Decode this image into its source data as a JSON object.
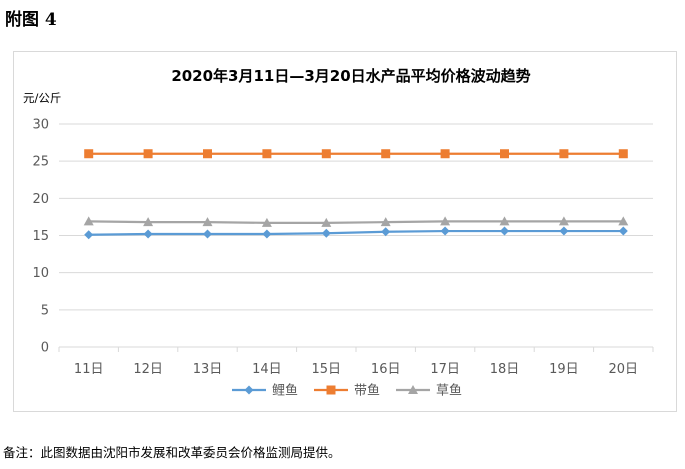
{
  "figure_label": "附图 4",
  "footnote": "备注：此图数据由沈阳市发展和改革委员会价格监测局提供。",
  "colors": {
    "鲤鱼": "#5b9bd5",
    "带鱼": "#ed7d31",
    "草鱼": "#a5a5a5",
    "grid": "#d9d9d9",
    "axis_text": "#595959"
  },
  "chart_data": {
    "type": "line",
    "title": "2020年3月11日—3月20日水产品平均价格波动趋势",
    "ylabel": "元/公斤",
    "xlabel": "",
    "ylim": [
      0,
      30
    ],
    "yticks": [
      0,
      5,
      10,
      15,
      20,
      25,
      30
    ],
    "categories": [
      "11日",
      "12日",
      "13日",
      "14日",
      "15日",
      "16日",
      "17日",
      "18日",
      "19日",
      "20日"
    ],
    "grid": true,
    "legend_position": "bottom",
    "series": [
      {
        "name": "鲤鱼",
        "marker": "diamond",
        "values": [
          15.1,
          15.2,
          15.2,
          15.2,
          15.3,
          15.5,
          15.6,
          15.6,
          15.6,
          15.6
        ]
      },
      {
        "name": "带鱼",
        "marker": "square",
        "values": [
          26.0,
          26.0,
          26.0,
          26.0,
          26.0,
          26.0,
          26.0,
          26.0,
          26.0,
          26.0
        ]
      },
      {
        "name": "草鱼",
        "marker": "triangle",
        "values": [
          16.9,
          16.8,
          16.8,
          16.7,
          16.7,
          16.8,
          16.9,
          16.9,
          16.9,
          16.9
        ]
      }
    ]
  }
}
